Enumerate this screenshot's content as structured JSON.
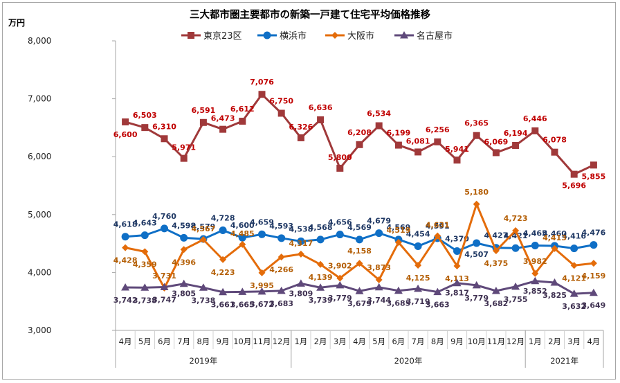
{
  "chart_data": {
    "type": "line",
    "title": "三大都市圏主要都市の新築一戸建て住宅平均価格推移",
    "ylabel": "万円",
    "xlabel": "",
    "ylim": [
      3000,
      8000
    ],
    "yticks": [
      3000,
      4000,
      5000,
      6000,
      7000,
      8000
    ],
    "ytick_labels": [
      "3,000",
      "4,000",
      "5,000",
      "6,000",
      "7,000",
      "8,000"
    ],
    "grid": false,
    "legend_position": "top-center",
    "categories": [
      "4月",
      "5月",
      "6月",
      "7月",
      "8月",
      "9月",
      "10月",
      "11月",
      "12月",
      "1月",
      "2月",
      "3月",
      "4月",
      "5月",
      "6月",
      "7月",
      "8月",
      "9月",
      "10月",
      "11月",
      "12月",
      "1月",
      "2月",
      "3月",
      "4月"
    ],
    "year_groups": [
      {
        "label": "2019年",
        "count": 9
      },
      {
        "label": "2020年",
        "count": 12
      },
      {
        "label": "2021年",
        "count": 4
      }
    ],
    "series": [
      {
        "name": "東京23区",
        "color": "#a0393a",
        "label_color": "#c00000",
        "marker": "square",
        "values": [
          6600,
          6503,
          6310,
          5971,
          6591,
          6473,
          6612,
          7076,
          6750,
          6326,
          6636,
          5800,
          6208,
          6534,
          6199,
          6081,
          6256,
          5941,
          6365,
          6069,
          6194,
          6446,
          6078,
          5696,
          5855
        ]
      },
      {
        "name": "横浜市",
        "color": "#0f6fc6",
        "label_color": "#1f3864",
        "marker": "circle",
        "values": [
          4618,
          4643,
          4760,
          4598,
          4579,
          4728,
          4600,
          4659,
          4593,
          4538,
          4568,
          4656,
          4569,
          4679,
          4569,
          4454,
          4591,
          4370,
          4507,
          4427,
          4421,
          4465,
          4460,
          4416,
          4476
        ]
      },
      {
        "name": "大阪市",
        "color": "#e46c0a",
        "label_color": "#b45f06",
        "marker": "diamond",
        "values": [
          4428,
          4359,
          3731,
          4396,
          4567,
          4223,
          4485,
          3995,
          4266,
          4317,
          4139,
          3902,
          4158,
          3873,
          4519,
          4125,
          4631,
          4113,
          5180,
          4375,
          4723,
          3982,
          4413,
          4121,
          4159
        ]
      },
      {
        "name": "名古屋市",
        "color": "#5f497a",
        "label_color": "#3f3151",
        "marker": "triangle",
        "values": [
          3742,
          3738,
          3747,
          3805,
          3738,
          3661,
          3665,
          3672,
          3683,
          3809,
          3739,
          3779,
          3679,
          3744,
          3685,
          3719,
          3663,
          3817,
          3779,
          3682,
          3755,
          3852,
          3825,
          3632,
          3649
        ]
      }
    ]
  }
}
